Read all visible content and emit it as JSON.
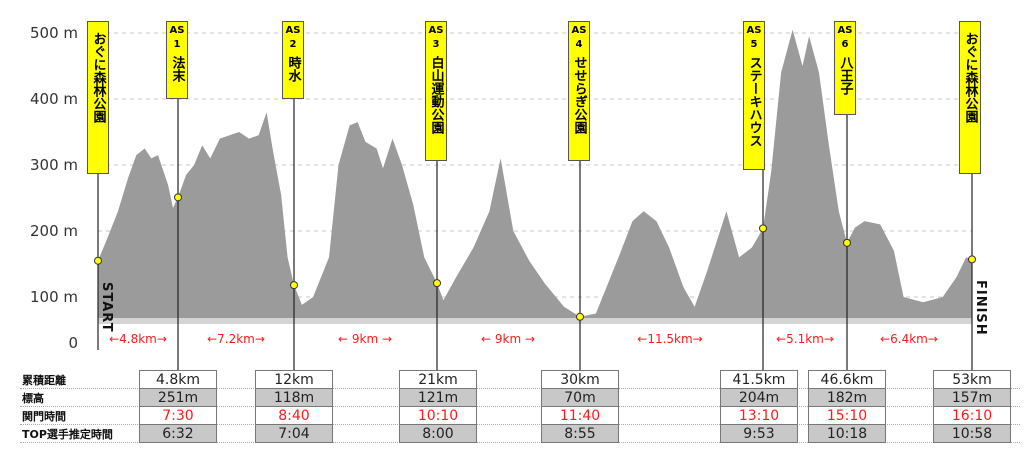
{
  "chart_data": {
    "type": "area",
    "title": "",
    "xlabel": "",
    "ylabel": "",
    "yticks": [
      "500 m",
      "400 m",
      "300 m",
      "200 m",
      "100 m",
      "0"
    ],
    "ylim": [
      0,
      520
    ],
    "xlim_km": [
      0,
      53
    ],
    "grid": "dashed horizontal at 100 m intervals",
    "fill_color": "#9b9b9b",
    "profile_km_elev": [
      [
        0,
        155
      ],
      [
        0.5,
        185
      ],
      [
        1.2,
        230
      ],
      [
        1.8,
        280
      ],
      [
        2.3,
        315
      ],
      [
        2.8,
        325
      ],
      [
        3.2,
        310
      ],
      [
        3.6,
        315
      ],
      [
        4.2,
        270
      ],
      [
        4.5,
        235
      ],
      [
        4.8,
        251
      ],
      [
        5.3,
        285
      ],
      [
        5.8,
        300
      ],
      [
        6.3,
        330
      ],
      [
        6.8,
        310
      ],
      [
        7.4,
        340
      ],
      [
        8.0,
        345
      ],
      [
        8.6,
        350
      ],
      [
        9.2,
        340
      ],
      [
        9.8,
        345
      ],
      [
        10.3,
        380
      ],
      [
        10.7,
        320
      ],
      [
        11.2,
        255
      ],
      [
        11.6,
        160
      ],
      [
        12,
        118
      ],
      [
        12.5,
        88
      ],
      [
        13.2,
        100
      ],
      [
        14.2,
        160
      ],
      [
        14.8,
        300
      ],
      [
        15.5,
        360
      ],
      [
        16.0,
        365
      ],
      [
        16.5,
        335
      ],
      [
        17.2,
        325
      ],
      [
        17.6,
        295
      ],
      [
        18.2,
        340
      ],
      [
        18.8,
        300
      ],
      [
        19.5,
        240
      ],
      [
        20.2,
        160
      ],
      [
        21,
        121
      ],
      [
        21.4,
        95
      ],
      [
        22.2,
        130
      ],
      [
        23.3,
        175
      ],
      [
        24.3,
        230
      ],
      [
        25.0,
        310
      ],
      [
        25.8,
        200
      ],
      [
        26.8,
        155
      ],
      [
        27.8,
        120
      ],
      [
        29.0,
        85
      ],
      [
        30,
        70
      ],
      [
        31.0,
        75
      ],
      [
        32.5,
        165
      ],
      [
        33.3,
        215
      ],
      [
        34.0,
        230
      ],
      [
        34.8,
        215
      ],
      [
        35.6,
        175
      ],
      [
        36.5,
        115
      ],
      [
        37.2,
        85
      ],
      [
        38.0,
        140
      ],
      [
        39.2,
        230
      ],
      [
        40.0,
        160
      ],
      [
        40.8,
        175
      ],
      [
        41.5,
        204
      ],
      [
        42.0,
        290
      ],
      [
        42.6,
        440
      ],
      [
        43.3,
        505
      ],
      [
        43.9,
        450
      ],
      [
        44.3,
        495
      ],
      [
        44.9,
        440
      ],
      [
        45.5,
        330
      ],
      [
        46.1,
        230
      ],
      [
        46.6,
        182
      ],
      [
        47.0,
        205
      ],
      [
        47.5,
        215
      ],
      [
        48.3,
        210
      ],
      [
        49.0,
        170
      ],
      [
        49.5,
        100
      ],
      [
        50.5,
        92
      ],
      [
        51.5,
        100
      ],
      [
        52.2,
        130
      ],
      [
        52.7,
        160
      ],
      [
        53,
        157
      ]
    ],
    "aid_stations": [
      {
        "id": "start",
        "km": 0,
        "elev_m": 155
      },
      {
        "id": "AS1",
        "km": 4.8,
        "elev_m": 251
      },
      {
        "id": "AS2",
        "km": 12,
        "elev_m": 118
      },
      {
        "id": "AS3",
        "km": 21,
        "elev_m": 121
      },
      {
        "id": "AS4",
        "km": 30,
        "elev_m": 70
      },
      {
        "id": "AS5",
        "km": 41.5,
        "elev_m": 204
      },
      {
        "id": "AS6",
        "km": 46.6,
        "elev_m": 182
      },
      {
        "id": "finish",
        "km": 53,
        "elev_m": 157
      }
    ]
  },
  "axis": {
    "y500": "500 m",
    "y400": "400 m",
    "y300": "300 m",
    "y200": "200 m",
    "y100": "100 m",
    "y0": "0"
  },
  "markers": {
    "start": "START",
    "finish": "FINISH"
  },
  "flags": [
    {
      "as": "",
      "num": "",
      "name": "おぐに森林公園"
    },
    {
      "as": "AS",
      "num": "1",
      "name": "法末"
    },
    {
      "as": "AS",
      "num": "2",
      "name": "時水"
    },
    {
      "as": "AS",
      "num": "3",
      "name": "白山運動公園"
    },
    {
      "as": "AS",
      "num": "4",
      "name": "せせらぎ公園"
    },
    {
      "as": "AS",
      "num": "5",
      "name": "ステーキハウス"
    },
    {
      "as": "AS",
      "num": "6",
      "name": "八王子"
    },
    {
      "as": "",
      "num": "",
      "name": "おぐに森林公園"
    }
  ],
  "segments": [
    "←4.8km→",
    "←7.2km→",
    "← 9km →",
    "← 9km →",
    "←11.5km→",
    "←5.1km→",
    "←6.4km→"
  ],
  "table": {
    "row_labels": [
      "累積距離",
      "標高",
      "関門時間",
      "TOP選手推定時間"
    ],
    "columns": [
      {
        "distance": "4.8km",
        "elevation": "251m",
        "cutoff": "7:30",
        "top_time": "6:32"
      },
      {
        "distance": "12km",
        "elevation": "118m",
        "cutoff": "8:40",
        "top_time": "7:04"
      },
      {
        "distance": "21km",
        "elevation": "121m",
        "cutoff": "10:10",
        "top_time": "8:00"
      },
      {
        "distance": "30km",
        "elevation": "70m",
        "cutoff": "11:40",
        "top_time": "8:55"
      },
      {
        "distance": "41.5km",
        "elevation": "204m",
        "cutoff": "13:10",
        "top_time": "9:53"
      },
      {
        "distance": "46.6km",
        "elevation": "182m",
        "cutoff": "15:10",
        "top_time": "10:18"
      },
      {
        "distance": "53km",
        "elevation": "157m",
        "cutoff": "16:10",
        "top_time": "10:58"
      }
    ]
  },
  "colors": {
    "profile_fill": "#9b9b9b",
    "flag_bg": "#ffff00",
    "cutoff_red": "#ff1a1a",
    "cell_gray": "#c8c8c8"
  }
}
